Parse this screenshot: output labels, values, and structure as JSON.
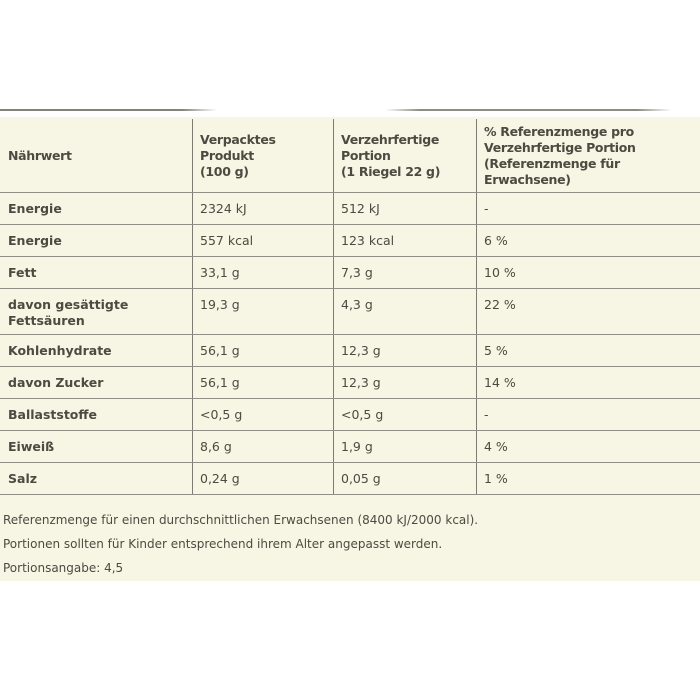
{
  "colors": {
    "page_background": "#ffffff",
    "panel_background": "#f7f5e3",
    "text": "#4b4b41",
    "grid_line": "#8f8f85"
  },
  "table": {
    "header": {
      "nutrient": "Nährwert",
      "packaged": "Verpacktes Produkt\n(100 g)",
      "portion": "Verzehrfertige\nPortion\n(1 Riegel 22 g)",
      "reference": "% Referenzmenge pro\nVerzehrfertige Portion\n(Referenzmenge für\nErwachsene)"
    },
    "rows": [
      {
        "label": "Energie",
        "per100g": "2324 kJ",
        "portion": "512 kJ",
        "reference": "-"
      },
      {
        "label": "Energie",
        "per100g": "557 kcal",
        "portion": "123 kcal",
        "reference": "6 %"
      },
      {
        "label": "Fett",
        "per100g": "33,1 g",
        "portion": "7,3 g",
        "reference": "10 %"
      },
      {
        "label": "davon gesättigte\nFettsäuren",
        "per100g": "19,3 g",
        "portion": "4,3 g",
        "reference": "22 %"
      },
      {
        "label": "Kohlenhydrate",
        "per100g": "56,1 g",
        "portion": "12,3 g",
        "reference": "5 %"
      },
      {
        "label": "davon Zucker",
        "per100g": "56,1 g",
        "portion": "12,3 g",
        "reference": "14 %"
      },
      {
        "label": "Ballaststoffe",
        "per100g": "<0,5 g",
        "portion": "<0,5 g",
        "reference": "-"
      },
      {
        "label": "Eiweiß",
        "per100g": "8,6 g",
        "portion": "1,9 g",
        "reference": "4 %"
      },
      {
        "label": "Salz",
        "per100g": "0,24 g",
        "portion": "0,05 g",
        "reference": "1 %"
      }
    ]
  },
  "footnotes": [
    "Referenzmenge für einen durchschnittlichen Erwachsenen (8400 kJ/2000 kcal).",
    "Portionen sollten für Kinder entsprechend ihrem Alter angepasst werden.",
    "Portionsangabe: 4,5"
  ]
}
